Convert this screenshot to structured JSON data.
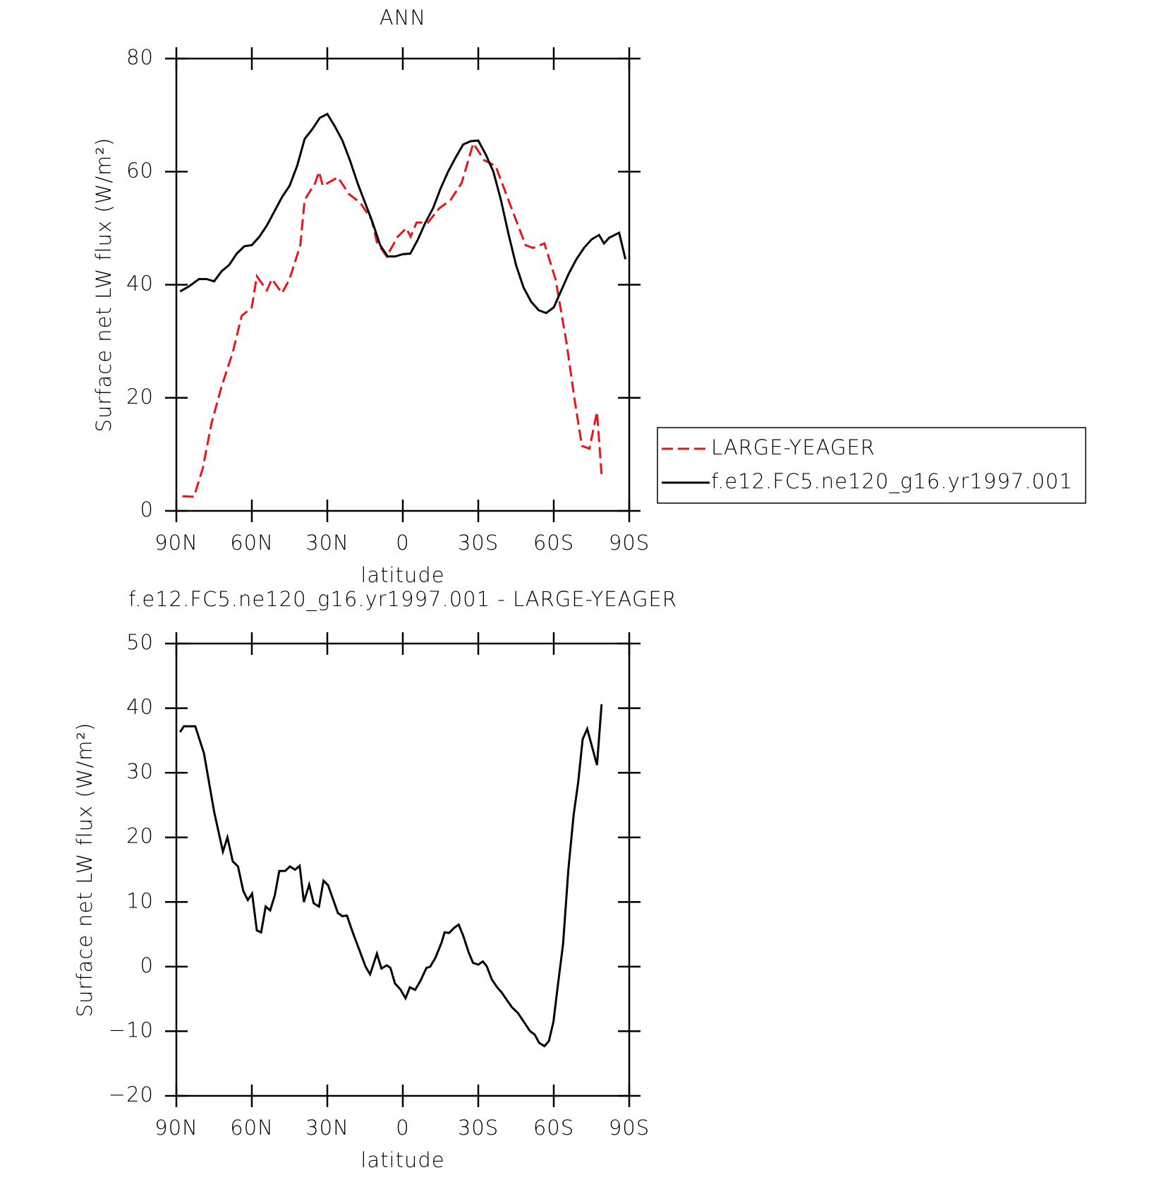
{
  "chart_data": [
    {
      "type": "line",
      "title": "ANN",
      "xlabel": "latitude",
      "ylabel": "Surface net LW flux (W/m²)",
      "xlim": [
        90,
        -90
      ],
      "xticks": [
        {
          "value": 90,
          "label": "90N"
        },
        {
          "value": 60,
          "label": "60N"
        },
        {
          "value": 30,
          "label": "30N"
        },
        0,
        {
          "value": -30,
          "label": "30S"
        },
        {
          "value": -60,
          "label": "60S"
        },
        {
          "value": -90,
          "label": "90S"
        }
      ],
      "ylim": [
        0,
        80
      ],
      "yticks": [
        0,
        20,
        40,
        60,
        80
      ],
      "legend": "outside right",
      "series": [
        {
          "name": "LARGE-YEAGER",
          "color": "#e8141a",
          "dashed": true,
          "x": [
            87.6,
            83,
            79.5,
            76,
            72,
            67.6,
            64,
            60,
            58,
            54,
            52,
            48,
            45,
            40.7,
            39,
            34.8,
            33.3,
            31.8,
            25.8,
            21.3,
            16.9,
            12.4,
            10.3,
            6.4,
            2,
            -1.4,
            -3.1,
            -5.5,
            -10,
            -14.5,
            -19,
            -23.4,
            -28,
            -32.4,
            -36.9,
            -42.8,
            -48.8,
            -51.8,
            -56.3,
            -60.7,
            -65,
            -68.2,
            -71.2,
            -74.2,
            -77.2,
            -79
          ],
          "values": [
            2.6,
            2.5,
            7.5,
            15.5,
            22,
            28,
            34.5,
            36,
            41.5,
            39,
            41,
            38.5,
            41,
            47,
            55,
            58,
            60,
            57.5,
            59,
            56,
            54.5,
            51.5,
            47.5,
            45,
            48.5,
            50,
            48.5,
            51,
            51,
            53.5,
            55,
            58,
            65,
            62,
            61,
            54,
            47,
            46.5,
            47.3,
            41,
            30,
            20,
            11.5,
            11,
            17.5,
            6.5
          ]
        },
        {
          "name": "f.e12.FC5.ne120_g16.yr1997.001",
          "color": "#000000",
          "dashed": false,
          "x": [
            88.5,
            85,
            81,
            78,
            75,
            72,
            69,
            66,
            63,
            60,
            57,
            54,
            51,
            48,
            45,
            42,
            39,
            36,
            33,
            30,
            27,
            24,
            21,
            18,
            15,
            12,
            9,
            6,
            3,
            0,
            -3,
            -6,
            -9,
            -12,
            -15,
            -18,
            -21,
            -24,
            -27,
            -30,
            -33,
            -36,
            -39,
            -42,
            -45,
            -48,
            -51,
            -54,
            -57,
            -60,
            -63,
            -66,
            -69,
            -72,
            -75,
            -78,
            -80,
            -82,
            -86,
            -88.5
          ],
          "values": [
            38.8,
            39.7,
            41,
            41,
            40.6,
            42.4,
            43.5,
            45.5,
            46.8,
            47,
            48.5,
            50.5,
            53,
            55.5,
            57.5,
            61,
            65.8,
            67.5,
            69.5,
            70.2,
            68,
            65.5,
            62,
            58,
            54.5,
            51,
            47,
            45,
            45,
            45.4,
            45.5,
            48,
            51,
            53.5,
            57,
            60,
            62.5,
            64.8,
            65.4,
            65.5,
            63,
            60,
            55,
            49,
            43.5,
            39.5,
            37,
            35.5,
            35,
            36,
            39,
            42,
            44.5,
            46.5,
            48,
            48.8,
            47.3,
            48.3,
            49.2,
            44.5
          ]
        }
      ]
    },
    {
      "type": "line",
      "title": "f.e12.FC5.ne120_g16.yr1997.001 - LARGE-YEAGER",
      "xlabel": "latitude",
      "ylabel": "Surface net LW flux (W/m²)",
      "xlim": [
        90,
        -90
      ],
      "xticks": [
        {
          "value": 90,
          "label": "90N"
        },
        {
          "value": 60,
          "label": "60N"
        },
        {
          "value": 30,
          "label": "30N"
        },
        0,
        {
          "value": -30,
          "label": "30S"
        },
        {
          "value": -60,
          "label": "60S"
        },
        {
          "value": -90,
          "label": "90S"
        }
      ],
      "ylim": [
        -20,
        50
      ],
      "yticks": [
        {
          "value": -20,
          "label": "−20"
        },
        {
          "value": -10,
          "label": "−10"
        },
        0,
        10,
        20,
        30,
        40,
        50
      ],
      "series": [
        {
          "color": "#000000",
          "dashed": false,
          "x": [
            88.5,
            87,
            82.5,
            79,
            75,
            71.5,
            69.7,
            67.6,
            65.5,
            63.4,
            61.6,
            59.9,
            58,
            56.3,
            54.5,
            52.7,
            50.9,
            49.1,
            46.7,
            44.9,
            42.8,
            41,
            39.3,
            37.2,
            35.4,
            33.3,
            31.5,
            29.7,
            25.8,
            24,
            22.2,
            19.9,
            16.9,
            14.8,
            13,
            10.3,
            8.5,
            6.4,
            4.9,
            3.1,
            1,
            -1.1,
            -2.8,
            -4.9,
            -7,
            -9.4,
            -10.9,
            -13,
            -15.4,
            -16.6,
            -18.4,
            -20.4,
            -22.2,
            -24,
            -26.1,
            -27.9,
            -30,
            -31.8,
            -33.3,
            -35.4,
            -37.5,
            -39.3,
            -41.4,
            -43.4,
            -45.8,
            -48.2,
            -50.6,
            -52.4,
            -54.2,
            -56.3,
            -58.1,
            -59.9,
            -61.6,
            -63.7,
            -65.8,
            -67.9,
            -69.7,
            -71.5,
            -73.3,
            -77.2,
            -79
          ],
          "values": [
            36.3,
            37.2,
            37.2,
            33,
            24,
            17.8,
            20,
            16.3,
            15.5,
            11.7,
            10.3,
            11.3,
            5.6,
            5.3,
            9.3,
            8.7,
            11,
            14.8,
            14.8,
            15.5,
            15,
            15.6,
            10,
            12.7,
            9.8,
            9.3,
            13.3,
            12.6,
            8.3,
            7.8,
            7.9,
            5.3,
            2.2,
            0,
            -1.2,
            2,
            -0.3,
            0.2,
            -0.2,
            -2.6,
            -3.5,
            -4.9,
            -3.2,
            -3.6,
            -2.2,
            -0.2,
            0,
            1.4,
            3.7,
            5.3,
            5.2,
            6,
            6.5,
            4.8,
            2.3,
            0.6,
            0.3,
            0.8,
            0.1,
            -2,
            -3.2,
            -4,
            -5.2,
            -6.3,
            -7.2,
            -8.6,
            -10,
            -10.5,
            -11.8,
            -12.3,
            -11.5,
            -8.5,
            -3,
            3.5,
            15,
            23.5,
            28.5,
            35.2,
            36.8,
            31.2,
            40.6
          ]
        }
      ]
    }
  ]
}
